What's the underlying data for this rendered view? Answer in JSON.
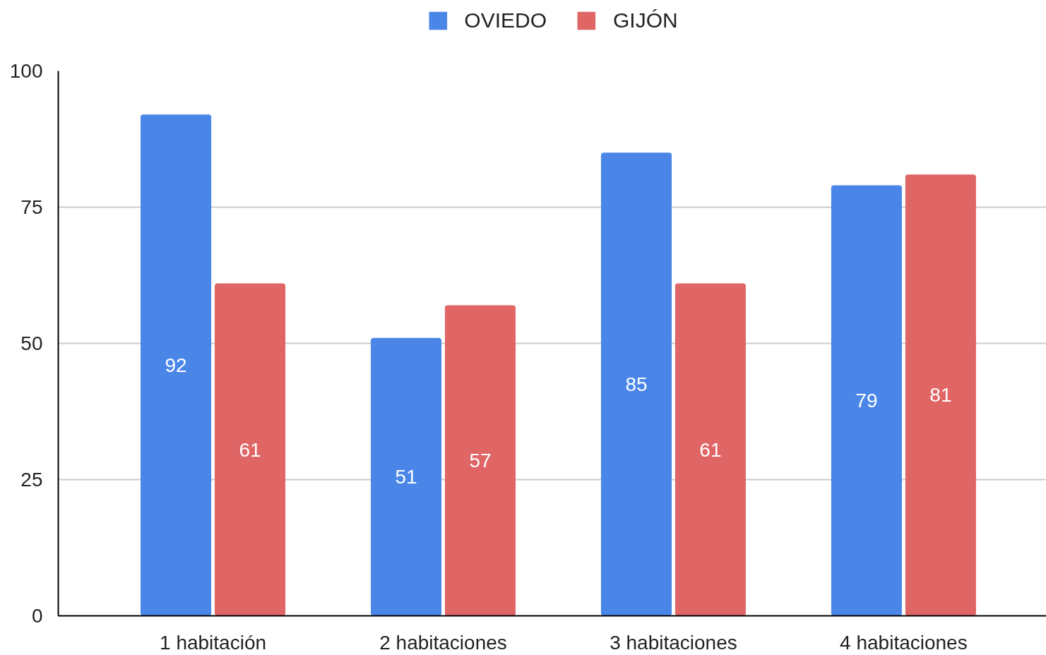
{
  "chart_data": {
    "type": "bar",
    "categories": [
      "1 habitación",
      "2 habitaciones",
      "3 habitaciones",
      "4 habitaciones"
    ],
    "series": [
      {
        "name": "OVIEDO",
        "color": "#4a86e8",
        "values": [
          92,
          51,
          85,
          79
        ]
      },
      {
        "name": "GIJÓN",
        "color": "#e06666",
        "values": [
          61,
          57,
          61,
          81
        ]
      }
    ],
    "ylim": [
      0,
      100
    ],
    "yticks": [
      0,
      25,
      50,
      75,
      100
    ],
    "grid": "y",
    "legend": "top",
    "data_labels": true
  }
}
